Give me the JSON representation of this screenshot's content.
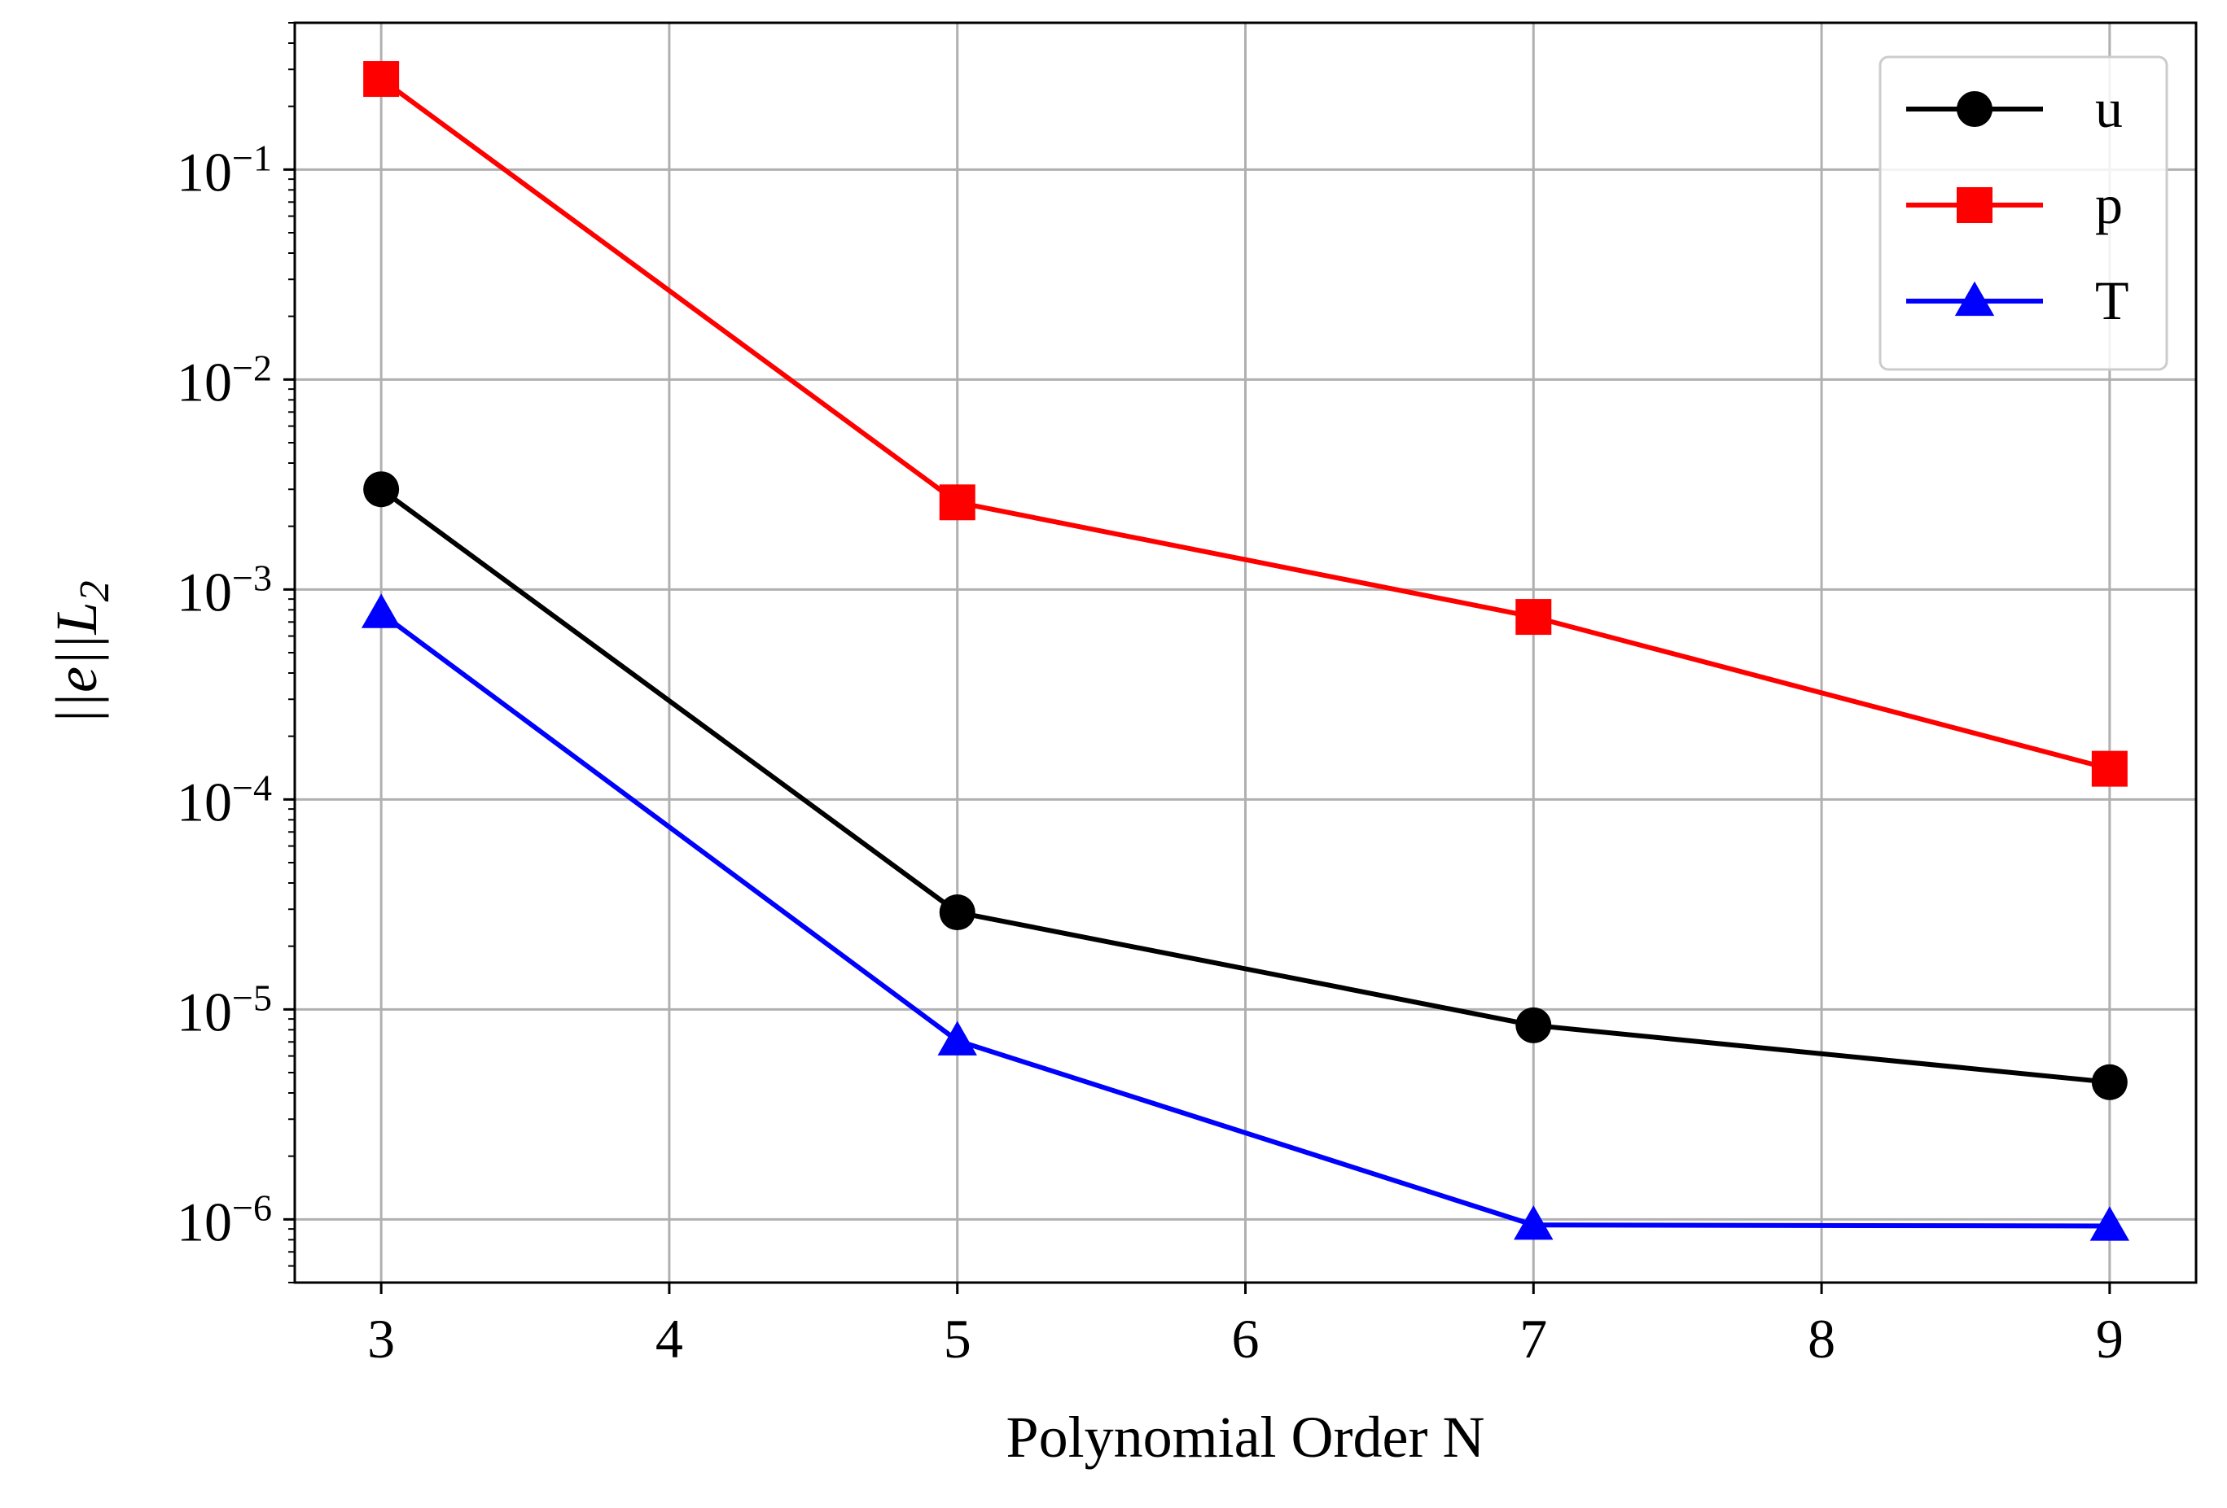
{
  "chart_data": {
    "type": "line",
    "title": "",
    "xlabel": "Polynomial Order N",
    "ylabel": "||e||L",
    "ylabel_subscript": "2",
    "yscale": "log",
    "xlim": [
      2.7,
      9.3
    ],
    "ylim": [
      5e-07,
      0.5
    ],
    "grid": true,
    "legend_position": "top-right",
    "x_ticks": [
      3,
      4,
      5,
      6,
      7,
      8,
      9
    ],
    "x_tick_labels": [
      "3",
      "4",
      "5",
      "6",
      "7",
      "8",
      "9"
    ],
    "y_ticks": [
      1e-06,
      1e-05,
      0.0001,
      0.001,
      0.01,
      0.1
    ],
    "y_tick_labels": [
      {
        "base": "10",
        "exp": "−6"
      },
      {
        "base": "10",
        "exp": "−5"
      },
      {
        "base": "10",
        "exp": "−4"
      },
      {
        "base": "10",
        "exp": "−3"
      },
      {
        "base": "10",
        "exp": "−2"
      },
      {
        "base": "10",
        "exp": "−1"
      }
    ],
    "series": [
      {
        "name": "u",
        "color": "#000000",
        "marker": "circle",
        "x": [
          3,
          5,
          7,
          9
        ],
        "values": [
          0.003,
          2.9e-05,
          8.4e-06,
          4.5e-06
        ]
      },
      {
        "name": "p",
        "color": "#ff0000",
        "marker": "square",
        "x": [
          3,
          5,
          7,
          9
        ],
        "values": [
          0.27,
          0.0026,
          0.00074,
          0.00014
        ]
      },
      {
        "name": "T",
        "color": "#0000ff",
        "marker": "triangle",
        "x": [
          3,
          5,
          7,
          9
        ],
        "values": [
          0.00077,
          7.1e-06,
          9.4e-07,
          9.3e-07
        ]
      }
    ]
  }
}
